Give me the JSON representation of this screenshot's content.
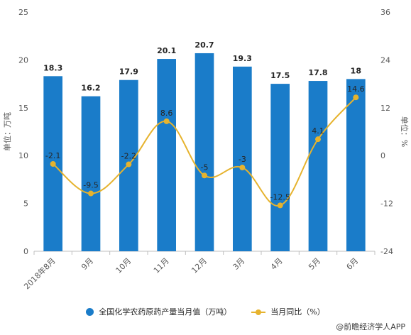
{
  "chart_data": {
    "type": "bar+line",
    "categories": [
      "2018年8月",
      "9月",
      "10月",
      "11月",
      "12月",
      "3月",
      "4月",
      "5月",
      "6月"
    ],
    "series": [
      {
        "name": "全国化学农药原药产量当月值（万吨）",
        "type": "bar",
        "axis": "left",
        "color": "#1a7cc9",
        "values": [
          18.3,
          16.2,
          17.9,
          20.1,
          20.7,
          19.3,
          17.5,
          17.8,
          18
        ],
        "labels": [
          "18.3",
          "16.2",
          "17.9",
          "20.1",
          "20.7",
          "19.3",
          "17.5",
          "17.8",
          "18"
        ]
      },
      {
        "name": "当月同比（%）",
        "type": "line",
        "axis": "right",
        "color": "#e6b32e",
        "values": [
          -2.1,
          -9.5,
          -2.2,
          8.6,
          -5,
          -3,
          -12.5,
          4.1,
          14.6
        ],
        "labels": [
          "-2.1",
          "-9.5",
          "-2.2",
          "8.6",
          "-5",
          "-3",
          "-12.5",
          "4.1",
          "14.6"
        ]
      }
    ],
    "y_left": {
      "label": "单位：万吨",
      "range": [
        0,
        25
      ],
      "ticks": [
        "0",
        "5",
        "10",
        "15",
        "20",
        "25"
      ]
    },
    "y_right": {
      "label": "单位：%",
      "range": [
        -24,
        36
      ],
      "ticks": [
        "-24",
        "-12",
        "0",
        "12",
        "24",
        "36"
      ]
    },
    "grid": false,
    "legend_position": "bottom"
  },
  "legend": {
    "bar_label": "全国化学农药原药产量当月值（万吨）",
    "line_label": "当月同比（%）"
  },
  "source": "@前瞻经济学人APP"
}
